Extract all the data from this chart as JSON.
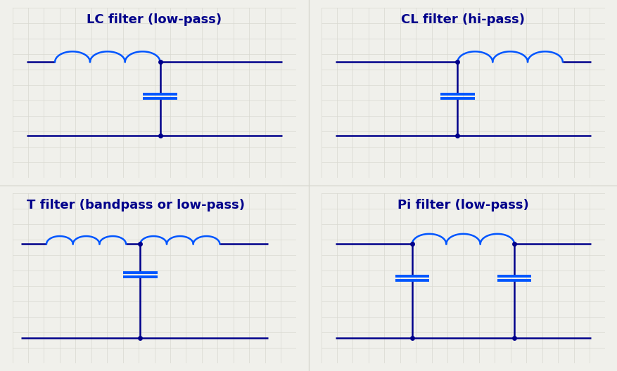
{
  "bg_color": "#f0f0eb",
  "grid_color": "#d8d8d0",
  "wire_color": "#00008B",
  "inductor_color": "#0055FF",
  "capacitor_color": "#0055FF",
  "dot_color": "#00008B",
  "title_color": "#00008B",
  "title_fontsize": 13,
  "titles": [
    "LC filter (low-pass)",
    "CL filter (hi-pass)",
    "T filter (bandpass or low-pass)",
    "Pi filter (low-pass)"
  ]
}
